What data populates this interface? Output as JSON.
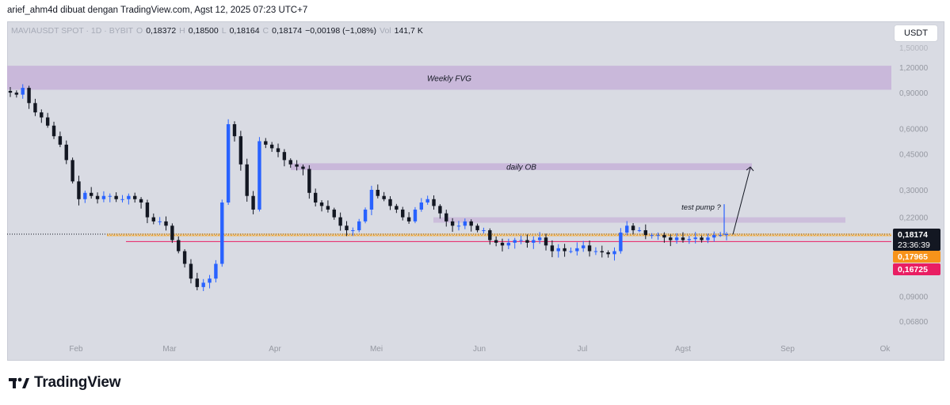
{
  "header": {
    "attribution": "arief_ahm4d dibuat dengan TradingView.com, Agst 12, 2025 07:23 UTC+7"
  },
  "legend": {
    "symbol": "MAVIAUSDT SPOT · 1D · BYBIT",
    "open_label": "O",
    "open": "0,18372",
    "high_label": "H",
    "high": "0,18500",
    "low_label": "L",
    "low": "0,18164",
    "close_label": "C",
    "close": "0,18174",
    "change": "−0,00198 (−1,08%)",
    "volume_label": "Vol",
    "volume": "141,7 K"
  },
  "currency_button": "USDT",
  "footer": {
    "brand": "TradingView"
  },
  "colors": {
    "background": "#d9dbe3",
    "up": "#2962ff",
    "down": "#131722",
    "fvg_zone": "#c7b4d8",
    "ob_zone": "#c7b4d8",
    "orange_line": "#f0a020",
    "magenta_line": "#e91e63",
    "price_badge": "#131722",
    "orange_badge": "#f7931a",
    "magenta_badge": "#e91e63"
  },
  "chart_data": {
    "type": "candlestick",
    "scale": "log",
    "ylim": [
      0.06,
      1.5
    ],
    "y_ticks": [
      {
        "value": 1.5,
        "label": "1,50000"
      },
      {
        "value": 1.2,
        "label": "1,20000"
      },
      {
        "value": 0.9,
        "label": "0,90000"
      },
      {
        "value": 0.6,
        "label": "0,60000"
      },
      {
        "value": 0.45,
        "label": "0,45000"
      },
      {
        "value": 0.3,
        "label": "0,30000"
      },
      {
        "value": 0.22,
        "label": "0,22000"
      },
      {
        "value": 0.09,
        "label": "0,09000"
      },
      {
        "value": 0.068,
        "label": "0,06800"
      }
    ],
    "x_ticks": [
      "Feb",
      "Mar",
      "Apr",
      "Mei",
      "Jun",
      "Jul",
      "Agst",
      "Sep",
      "Ok"
    ],
    "zones": [
      {
        "label": "Weekly FVG",
        "low": 0.93,
        "high": 1.22
      },
      {
        "label": "daily OB",
        "low": 0.375,
        "high": 0.405
      },
      {
        "label": "",
        "low": 0.207,
        "high": 0.22
      }
    ],
    "horizontal_lines": [
      {
        "price": 0.18174,
        "label": "0,18174",
        "style": "dotted"
      },
      {
        "price": 0.17965,
        "label": "0,17965",
        "style": "orange"
      },
      {
        "price": 0.16725,
        "label": "0,16725",
        "style": "magenta"
      }
    ],
    "countdown": "23:36:39",
    "annotations": [
      {
        "text": "test pump ?"
      }
    ],
    "ohlc_close_path": [
      0.9,
      0.88,
      0.95,
      0.8,
      0.72,
      0.68,
      0.62,
      0.55,
      0.5,
      0.42,
      0.33,
      0.27,
      0.29,
      0.28,
      0.27,
      0.28,
      0.28,
      0.27,
      0.27,
      0.28,
      0.27,
      0.26,
      0.22,
      0.21,
      0.21,
      0.2,
      0.17,
      0.15,
      0.13,
      0.11,
      0.1,
      0.105,
      0.11,
      0.13,
      0.26,
      0.63,
      0.55,
      0.4,
      0.28,
      0.24,
      0.52,
      0.5,
      0.48,
      0.46,
      0.42,
      0.4,
      0.39,
      0.38,
      0.29,
      0.26,
      0.25,
      0.24,
      0.22,
      0.2,
      0.19,
      0.19,
      0.21,
      0.24,
      0.3,
      0.28,
      0.27,
      0.25,
      0.24,
      0.22,
      0.21,
      0.24,
      0.26,
      0.27,
      0.25,
      0.23,
      0.21,
      0.2,
      0.2,
      0.21,
      0.2,
      0.19,
      0.19,
      0.17,
      0.165,
      0.16,
      0.165,
      0.17,
      0.17,
      0.165,
      0.17,
      0.175,
      0.16,
      0.15,
      0.155,
      0.15,
      0.15,
      0.155,
      0.16,
      0.15,
      0.15,
      0.148,
      0.145,
      0.15,
      0.185,
      0.2,
      0.19,
      0.19,
      0.18,
      0.18,
      0.18,
      0.175,
      0.17,
      0.175,
      0.17,
      0.172,
      0.175,
      0.17,
      0.175,
      0.18,
      0.18,
      0.18174
    ]
  }
}
